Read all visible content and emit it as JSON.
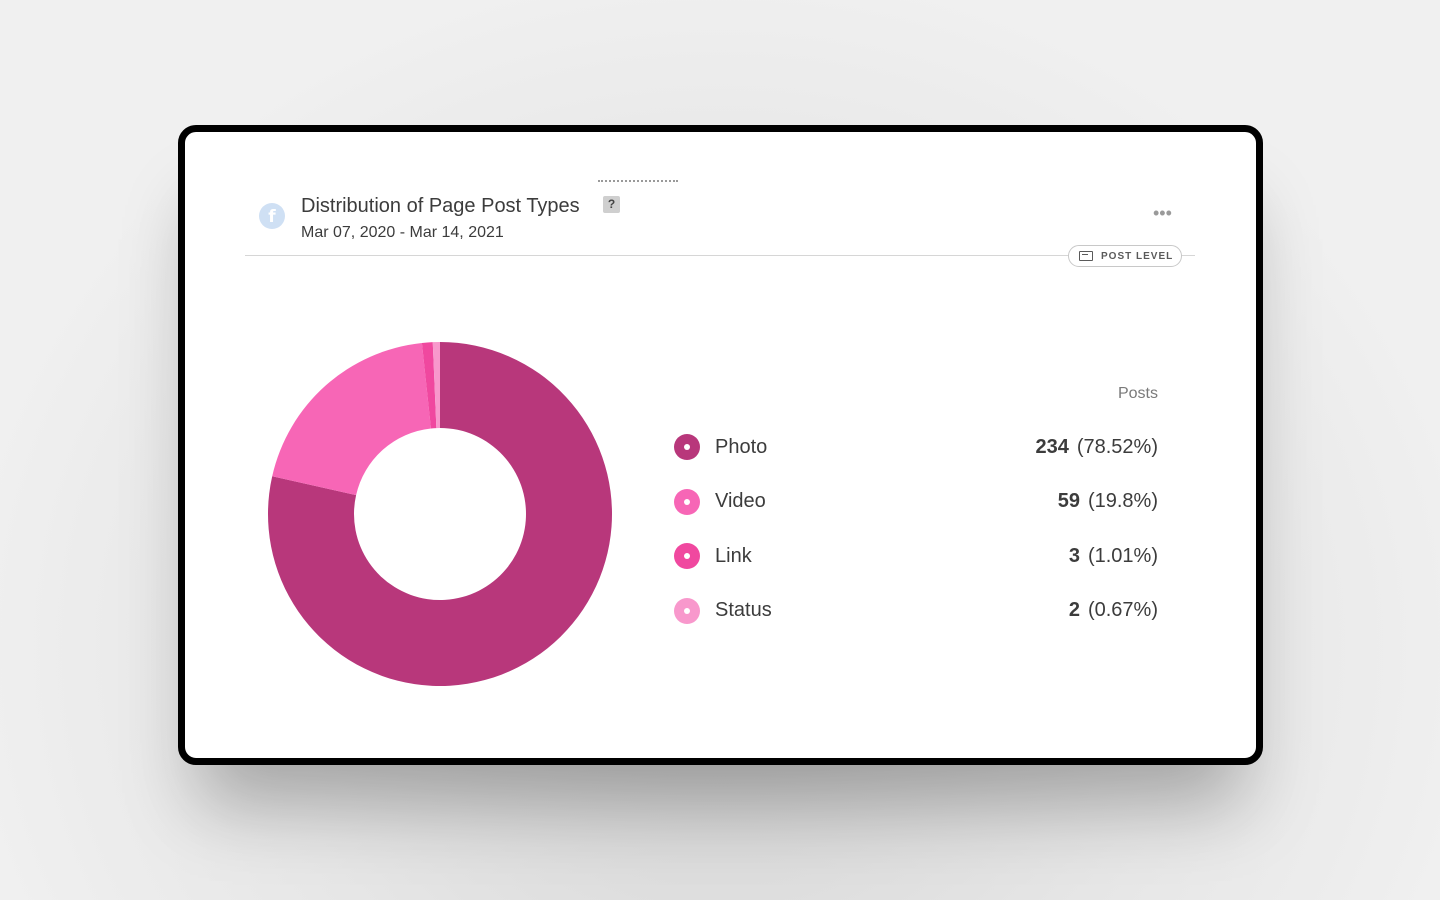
{
  "card": {
    "title": "Distribution of Page Post Types",
    "help_label": "?",
    "date_range": "Mar 07, 2020 - Mar 14, 2021",
    "more_label": "•••",
    "post_level_label": "POST LEVEL"
  },
  "icons": {
    "source": "facebook-icon",
    "help": "question-mark-icon",
    "more": "more-horizontal-icon",
    "post_level": "layout-card-icon"
  },
  "legend": {
    "header": "Posts",
    "items": [
      {
        "label": "Photo",
        "count": "234",
        "percent": "(78.52%)",
        "color": "#b8377b"
      },
      {
        "label": "Video",
        "count": "59",
        "percent": "(19.8%)",
        "color": "#f766b6"
      },
      {
        "label": "Link",
        "count": "3",
        "percent": "(1.01%)",
        "color": "#f0489f"
      },
      {
        "label": "Status",
        "count": "2",
        "percent": "(0.67%)",
        "color": "#f898cc"
      }
    ]
  },
  "chart_data": {
    "type": "pie",
    "variant": "donut",
    "title": "Distribution of Page Post Types",
    "categories": [
      "Photo",
      "Video",
      "Link",
      "Status"
    ],
    "values": [
      234,
      59,
      3,
      2
    ],
    "percentages": [
      78.52,
      19.8,
      1.01,
      0.67
    ],
    "colors": [
      "#b8377b",
      "#f766b6",
      "#f0489f",
      "#f898cc"
    ],
    "legend_placement": "right"
  }
}
